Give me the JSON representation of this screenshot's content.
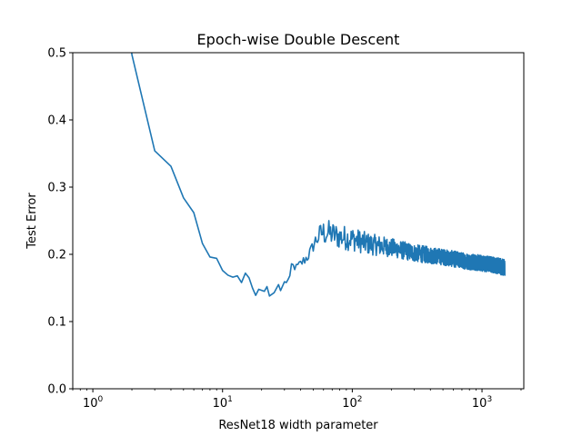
{
  "chart_data": {
    "type": "line",
    "title": "Epoch-wise Double Descent",
    "xlabel": "ResNet18 width parameter",
    "ylabel": "Test Error",
    "xscale": "log",
    "xlim": [
      0.7,
      2100
    ],
    "ylim": [
      0,
      0.5
    ],
    "grid": false,
    "legend": "none",
    "x_ticks": [
      {
        "base": "10",
        "exp": "0"
      },
      {
        "base": "10",
        "exp": "1"
      },
      {
        "base": "10",
        "exp": "2"
      },
      {
        "base": "10",
        "exp": "3"
      }
    ],
    "y_ticks": [
      "0.0",
      "0.1",
      "0.2",
      "0.3",
      "0.4",
      "0.5"
    ],
    "series_color": "#1f77b4",
    "series": [
      {
        "anchors": [
          [
            1.95,
            0.52
          ],
          [
            2,
            0.497
          ],
          [
            3,
            0.354
          ],
          [
            4,
            0.331
          ],
          [
            5,
            0.284
          ],
          [
            6,
            0.262
          ],
          [
            7,
            0.216
          ],
          [
            8,
            0.196
          ],
          [
            9,
            0.194
          ],
          [
            10,
            0.176
          ],
          [
            11,
            0.169
          ],
          [
            12,
            0.166
          ],
          [
            13,
            0.168
          ],
          [
            14,
            0.158
          ],
          [
            15,
            0.172
          ],
          [
            16,
            0.165
          ],
          [
            17,
            0.15
          ],
          [
            18,
            0.139
          ],
          [
            19,
            0.148
          ],
          [
            21,
            0.145
          ],
          [
            22,
            0.152
          ],
          [
            23,
            0.138
          ],
          [
            25,
            0.143
          ],
          [
            27,
            0.155
          ],
          [
            28,
            0.146
          ],
          [
            30,
            0.158
          ],
          [
            33,
            0.163
          ],
          [
            34,
            0.184
          ],
          [
            37,
            0.18
          ],
          [
            40,
            0.186
          ],
          [
            45,
            0.196
          ],
          [
            48,
            0.205
          ],
          [
            52,
            0.22
          ],
          [
            58,
            0.232
          ],
          [
            65,
            0.232
          ],
          [
            80,
            0.226
          ],
          [
            100,
            0.223
          ],
          [
            130,
            0.216
          ],
          [
            200,
            0.21
          ],
          [
            300,
            0.202
          ],
          [
            500,
            0.196
          ],
          [
            800,
            0.189
          ],
          [
            1200,
            0.185
          ],
          [
            1500,
            0.18
          ]
        ],
        "noise": [
          [
            30,
            0.004
          ],
          [
            50,
            0.01
          ],
          [
            60,
            0.02
          ],
          [
            100,
            0.018
          ],
          [
            200,
            0.014
          ],
          [
            500,
            0.012
          ],
          [
            1500,
            0.012
          ]
        ],
        "dense_from": 30,
        "dense_to": 1500
      }
    ]
  }
}
